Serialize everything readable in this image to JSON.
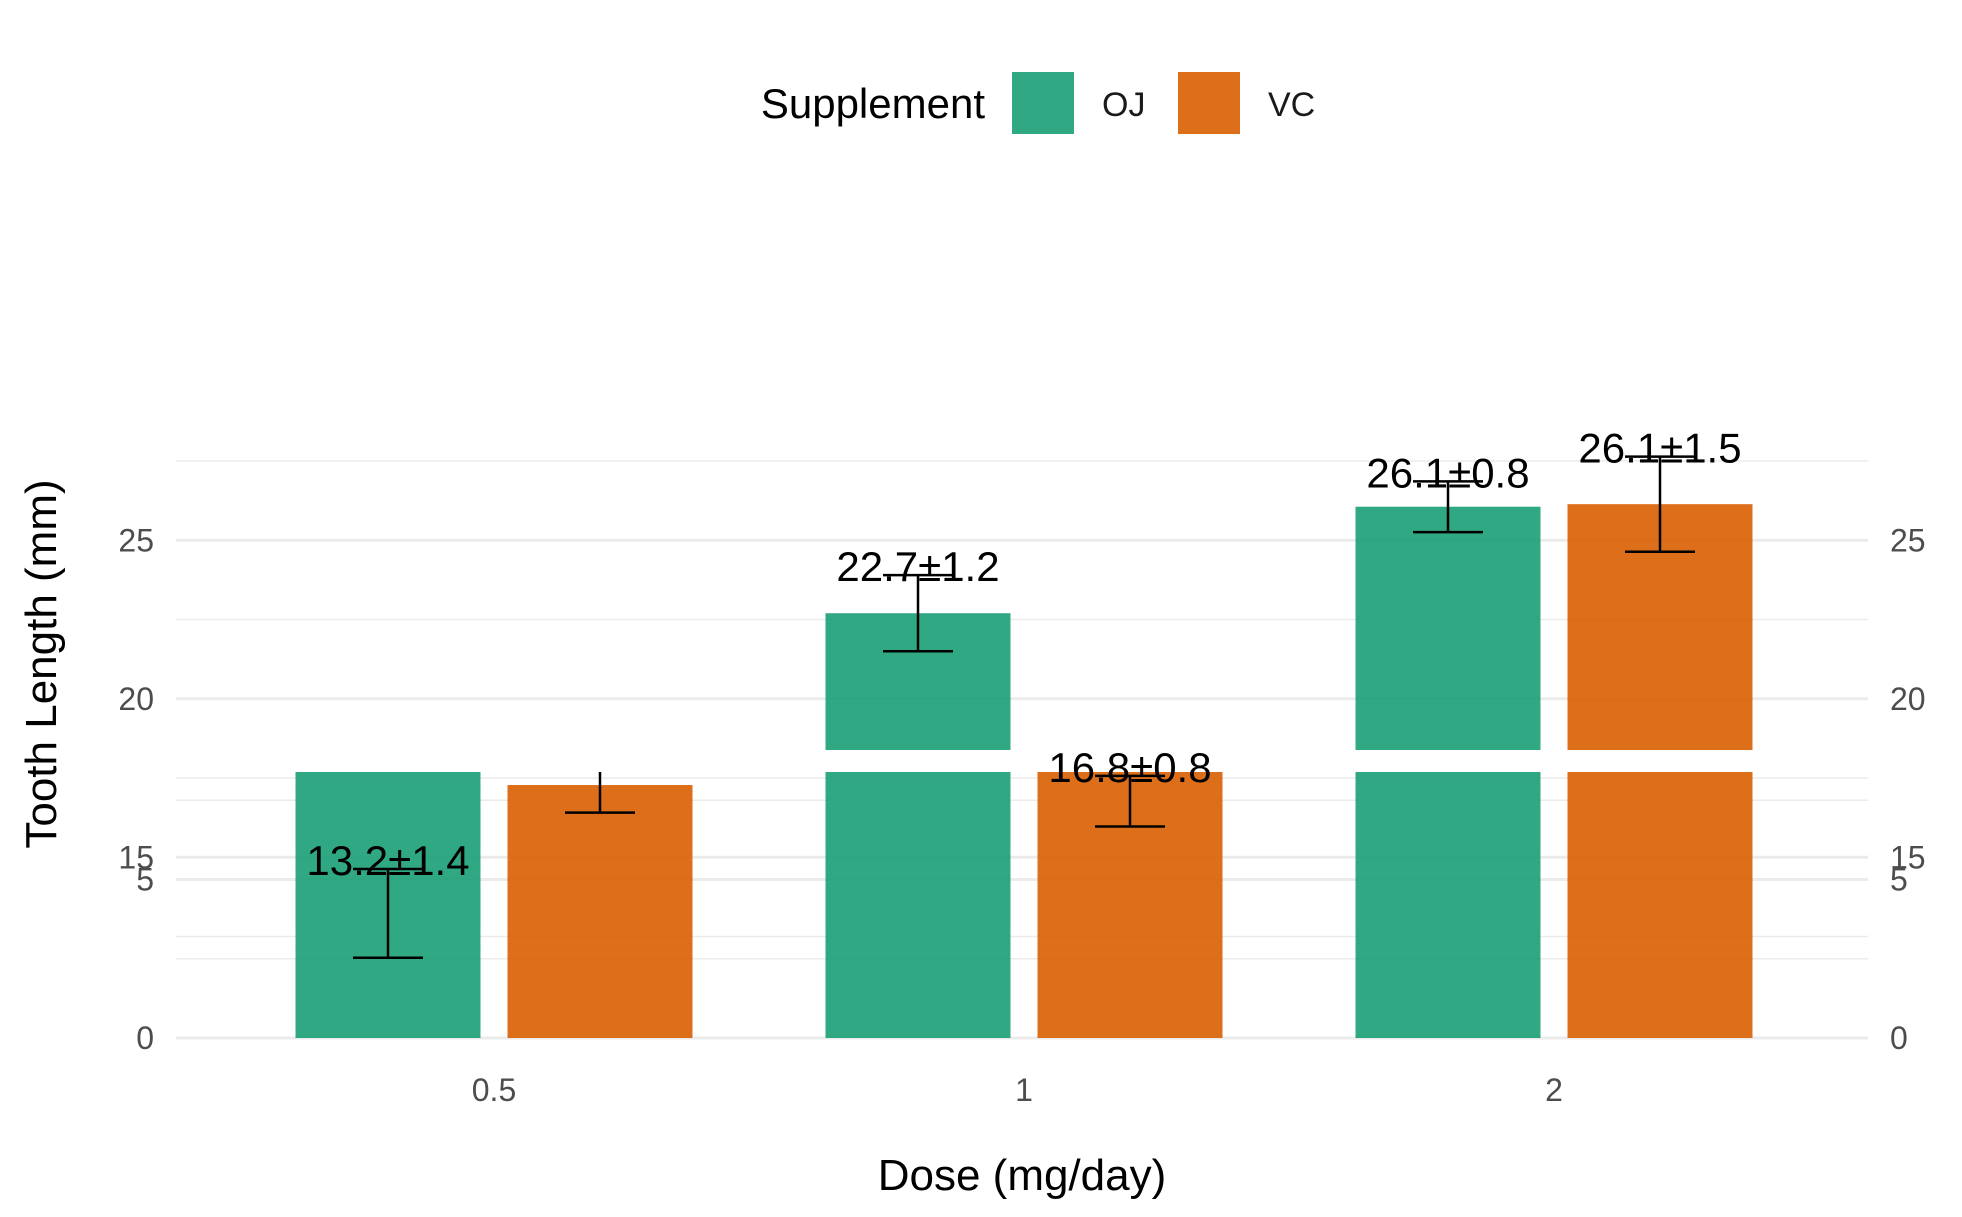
{
  "chart_data": {
    "type": "bar",
    "title": "",
    "xlabel": "Dose (mg/day)",
    "ylabel": "Tooth Length (mm)",
    "categories": [
      "0.5",
      "1",
      "2"
    ],
    "series": [
      {
        "name": "OJ",
        "color": "#1b9e77",
        "values": [
          13.23,
          22.7,
          26.06
        ],
        "errors": [
          1.4,
          1.2,
          0.8
        ],
        "labels": [
          "13.2±1.4",
          "22.7±1.2",
          "26.1±0.8"
        ]
      },
      {
        "name": "VC",
        "color": "#d95f02",
        "values": [
          7.98,
          16.77,
          26.14
        ],
        "errors": [
          0.87,
          0.8,
          1.5
        ],
        "labels": [
          "",
          "16.8±0.8",
          "26.1±1.5"
        ]
      }
    ],
    "axis_break": {
      "from": 9.5,
      "to": 12
    },
    "ylim": [
      0,
      27.5
    ],
    "yticks": [
      "0",
      "5",
      "15",
      "20",
      "25"
    ],
    "ytick_values": [
      0,
      5,
      15,
      20,
      25
    ],
    "minor_gridlines": [
      2.5,
      7.5,
      12.5,
      17.5,
      22.5,
      27.5
    ],
    "legend": {
      "title": "Supplement",
      "position": "top",
      "entries": [
        "OJ",
        "VC"
      ]
    },
    "secondary_y_axis": true,
    "grid": true
  }
}
